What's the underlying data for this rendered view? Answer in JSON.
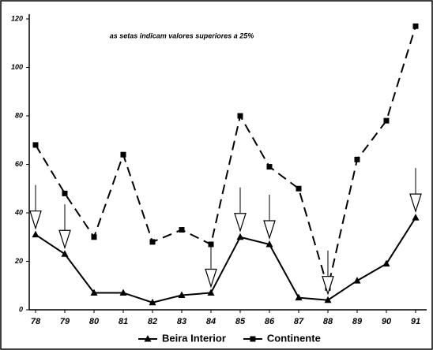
{
  "chart_data": {
    "type": "line",
    "annotation": "as setas indicam valores superiores a 25%",
    "categories": [
      "78",
      "79",
      "80",
      "81",
      "82",
      "83",
      "84",
      "85",
      "86",
      "87",
      "88",
      "89",
      "90",
      "91"
    ],
    "series": [
      {
        "name": "Beira Interior",
        "color": "#000000",
        "marker": "triangle",
        "dash": false,
        "values": [
          31,
          23,
          7,
          7,
          3,
          6,
          7,
          30,
          27,
          5,
          4,
          12,
          19,
          38
        ]
      },
      {
        "name": "Continente",
        "color": "#000000",
        "marker": "square",
        "dash": true,
        "values": [
          68,
          48,
          30,
          64,
          28,
          33,
          27,
          80,
          59,
          50,
          9,
          62,
          78,
          117
        ]
      }
    ],
    "arrows": [
      "78",
      "79",
      "84",
      "85",
      "86",
      "88",
      "91"
    ],
    "ylim": [
      0,
      120
    ],
    "yticks": [
      0,
      20,
      40,
      60,
      80,
      100,
      120
    ],
    "grid": false,
    "legend": "bottom"
  }
}
